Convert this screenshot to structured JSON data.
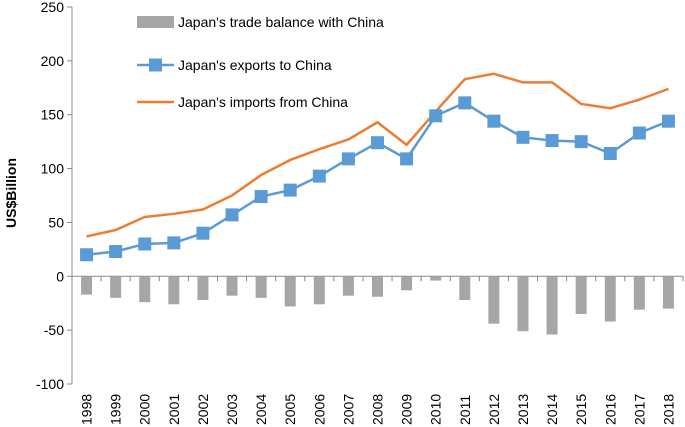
{
  "chart_data": {
    "type": "bar",
    "title": "",
    "xlabel": "",
    "ylabel": "US$Billion",
    "ylim": [
      -100,
      250
    ],
    "yticks": [
      -100,
      -50,
      0,
      50,
      100,
      150,
      200,
      250
    ],
    "grid": false,
    "legend_position": "top-left",
    "categories": [
      "1998",
      "1999",
      "2000",
      "2001",
      "2002",
      "2003",
      "2004",
      "2005",
      "2006",
      "2007",
      "2008",
      "2009",
      "2010",
      "2011",
      "2012",
      "2013",
      "2014",
      "2015",
      "2016",
      "2017",
      "2018"
    ],
    "series": [
      {
        "name": "Japan's trade balance with China",
        "type": "bar",
        "color": "#a6a6a6",
        "values": [
          -17,
          -20,
          -24,
          -26,
          -22,
          -18,
          -20,
          -28,
          -26,
          -18,
          -19,
          -13,
          -4,
          -22,
          -44,
          -51,
          -54,
          -35,
          -42,
          -31,
          -30
        ]
      },
      {
        "name": "Japan's exports to China",
        "type": "line",
        "marker": "square",
        "color": "#5b9bd5",
        "values": [
          20,
          23,
          30,
          31,
          40,
          57,
          74,
          80,
          93,
          109,
          124,
          109,
          149,
          161,
          144,
          129,
          126,
          125,
          114,
          133,
          144
        ]
      },
      {
        "name": "Japan's imports from China",
        "type": "line",
        "color": "#ed7d31",
        "values": [
          37,
          43,
          55,
          58,
          62,
          75,
          94,
          108,
          118,
          127,
          143,
          122,
          153,
          183,
          188,
          180,
          180,
          160,
          156,
          164,
          174
        ]
      }
    ]
  }
}
